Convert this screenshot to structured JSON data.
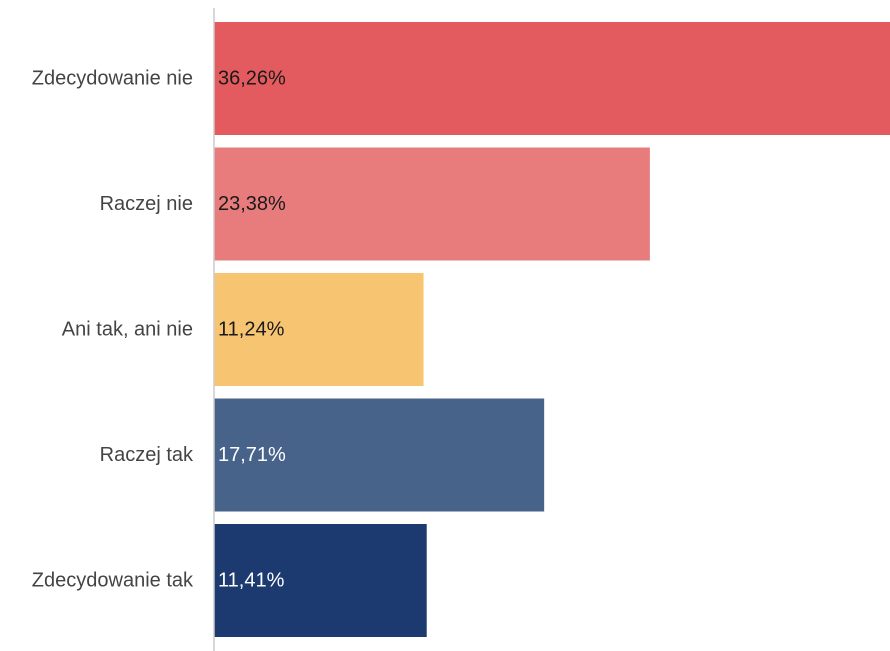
{
  "chart_data": {
    "type": "bar",
    "orientation": "horizontal",
    "categories": [
      "Zdecydowanie nie",
      "Raczej nie",
      "Ani tak, ani nie",
      "Raczej tak",
      "Zdecydowanie tak"
    ],
    "values": [
      36.26,
      23.38,
      11.24,
      17.71,
      11.41
    ],
    "value_labels": [
      "36,26%",
      "23,38%",
      "11,24%",
      "17,71%",
      "11,41%"
    ],
    "colors": [
      "#e35b5e",
      "#e87c7c",
      "#f7c572",
      "#486389",
      "#1c3a6f"
    ],
    "label_colors": [
      "#1a1a1a",
      "#1a1a1a",
      "#1a1a1a",
      "#ffffff",
      "#ffffff"
    ],
    "axis_color": "#cccccc",
    "xlim": [
      0,
      36.26
    ],
    "title": "",
    "xlabel": "",
    "ylabel": "",
    "grid": false,
    "legend": "none"
  }
}
